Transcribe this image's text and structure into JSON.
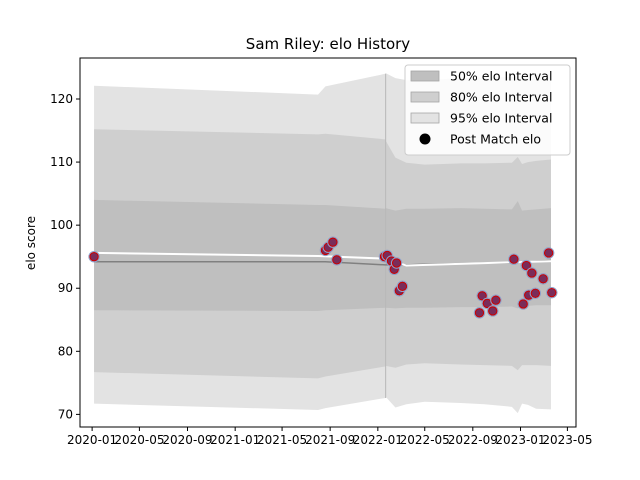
{
  "chart_data": {
    "type": "line",
    "title": "Sam Riley: elo History",
    "xlabel": "",
    "ylabel": "elo score",
    "xlim": [
      "2019-12-01",
      "2023-05-23"
    ],
    "ylim": [
      68,
      126.5
    ],
    "x_ticks": [
      "2020-01",
      "2020-05",
      "2020-09",
      "2021-01",
      "2021-05",
      "2021-09",
      "2022-01",
      "2022-05",
      "2022-09",
      "2023-01",
      "2023-05"
    ],
    "y_ticks": [
      70,
      80,
      90,
      100,
      110,
      120
    ],
    "grid": false,
    "legend_position": "top-right",
    "legend": [
      {
        "label": "50% elo Interval",
        "kind": "band",
        "color": "#bfbfbf"
      },
      {
        "label": "80% elo Interval",
        "kind": "band",
        "color": "#cfcfcf"
      },
      {
        "label": "95% elo Interval",
        "kind": "band",
        "color": "#e3e3e3"
      },
      {
        "label": "Post Match elo",
        "kind": "marker",
        "color": "#000000"
      }
    ],
    "colors": {
      "band50": "#bfbfbf",
      "band80": "#cfcfcf",
      "band95": "#e3e3e3",
      "median_line": "#808080",
      "reference_line": "#ffffff",
      "point_fill": "#7a2c5a",
      "point_edge_blue": "#8da0cb",
      "point_edge_red": "#cc0000",
      "axis": "#000000"
    },
    "bands": {
      "dates": [
        "2020-01-06",
        "2021-08-01",
        "2021-08-20",
        "2022-01-20",
        "2022-01-21",
        "2022-02-15",
        "2022-03-15",
        "2022-05-01",
        "2022-08-01",
        "2022-10-01",
        "2022-12-10",
        "2022-12-25",
        "2023-01-05",
        "2023-01-20",
        "2023-02-10",
        "2023-03-20"
      ],
      "lower95": [
        71.7,
        70.7,
        71.0,
        72.6,
        72.8,
        71.1,
        71.6,
        72.0,
        71.8,
        71.6,
        71.2,
        70.2,
        71.7,
        71.5,
        70.9,
        70.8
      ],
      "lower80": [
        76.7,
        75.7,
        76.0,
        77.6,
        77.7,
        77.4,
        77.9,
        78.1,
        77.9,
        77.8,
        77.7,
        77.0,
        77.8,
        77.8,
        77.8,
        77.7
      ],
      "lower50": [
        86.5,
        86.4,
        86.5,
        86.9,
        86.9,
        86.8,
        86.9,
        86.9,
        87.0,
        87.0,
        87.1,
        86.8,
        87.1,
        87.2,
        87.3,
        87.3
      ],
      "median": [
        94.2,
        94.2,
        94.2,
        93.7,
        93.7,
        93.7,
        93.7,
        93.8,
        93.9,
        94.0,
        94.0,
        94.1,
        94.2,
        94.1,
        94.3,
        94.4
      ],
      "upper50": [
        104.0,
        103.2,
        103.2,
        102.6,
        102.7,
        102.3,
        102.6,
        102.6,
        102.7,
        102.6,
        102.5,
        103.8,
        102.3,
        102.4,
        102.5,
        102.7
      ],
      "upper80": [
        115.2,
        114.4,
        114.5,
        113.6,
        113.4,
        110.7,
        109.9,
        109.6,
        109.8,
        109.8,
        109.9,
        110.8,
        109.7,
        110.0,
        110.2,
        110.4
      ],
      "upper95": [
        122.1,
        120.7,
        122.0,
        124.0,
        124.1,
        123.3,
        123.0,
        123.0,
        123.3,
        123.4,
        123.5,
        123.4,
        123.5,
        123.7,
        123.9,
        124.0
      ]
    },
    "reference_line": {
      "dates": [
        "2020-01-06",
        "2021-08-01",
        "2022-01-20",
        "2022-03-15",
        "2022-12-01",
        "2023-03-25"
      ],
      "values": [
        95.6,
        95.1,
        94.7,
        93.6,
        94.1,
        94.3
      ]
    },
    "post_match_elo": [
      {
        "date": "2020-01-06",
        "elo": 95.0
      },
      {
        "date": "2021-08-20",
        "elo": 96.0
      },
      {
        "date": "2021-08-27",
        "elo": 96.5
      },
      {
        "date": "2021-09-08",
        "elo": 97.3
      },
      {
        "date": "2021-09-18",
        "elo": 94.5
      },
      {
        "date": "2022-01-18",
        "elo": 95.0
      },
      {
        "date": "2022-01-25",
        "elo": 95.2
      },
      {
        "date": "2022-02-05",
        "elo": 94.3
      },
      {
        "date": "2022-02-12",
        "elo": 93.0
      },
      {
        "date": "2022-02-18",
        "elo": 94.0
      },
      {
        "date": "2022-02-25",
        "elo": 89.6
      },
      {
        "date": "2022-03-05",
        "elo": 90.3
      },
      {
        "date": "2022-09-18",
        "elo": 86.1
      },
      {
        "date": "2022-09-25",
        "elo": 88.8
      },
      {
        "date": "2022-10-08",
        "elo": 87.6
      },
      {
        "date": "2022-10-22",
        "elo": 86.4
      },
      {
        "date": "2022-10-30",
        "elo": 88.1
      },
      {
        "date": "2022-12-15",
        "elo": 94.6
      },
      {
        "date": "2023-01-08",
        "elo": 87.5
      },
      {
        "date": "2023-01-16",
        "elo": 93.6
      },
      {
        "date": "2023-01-22",
        "elo": 88.9
      },
      {
        "date": "2023-01-30",
        "elo": 92.4
      },
      {
        "date": "2023-02-08",
        "elo": 89.2
      },
      {
        "date": "2023-02-28",
        "elo": 91.5
      },
      {
        "date": "2023-03-14",
        "elo": 95.6
      },
      {
        "date": "2023-03-22",
        "elo": 89.3
      }
    ]
  }
}
